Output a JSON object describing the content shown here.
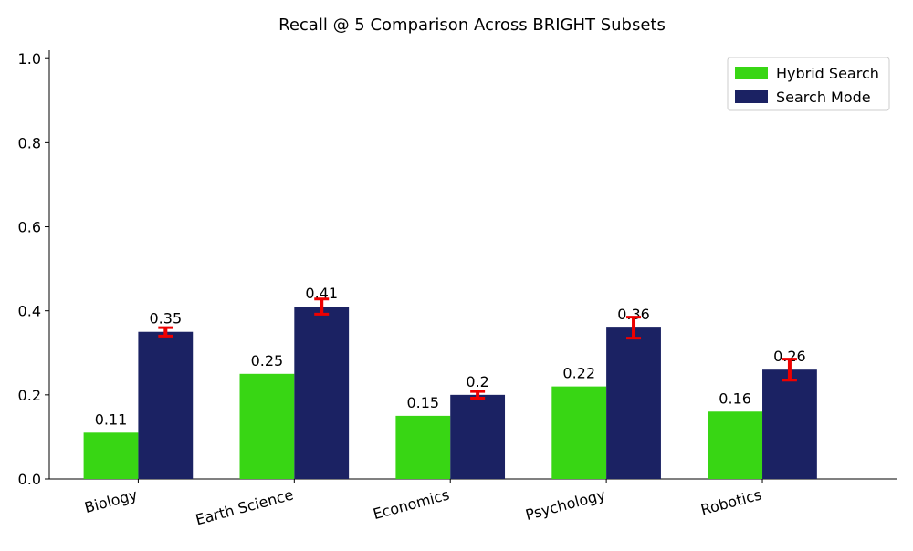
{
  "chart_data": {
    "type": "bar",
    "title": "Recall @ 5 Comparison Across BRIGHT Subsets",
    "xlabel": "",
    "ylabel": "",
    "categories": [
      "Biology",
      "Earth Science",
      "Economics",
      "Psychology",
      "Robotics"
    ],
    "series": [
      {
        "name": "Hybrid Search",
        "color": "#38d614",
        "values": [
          0.11,
          0.25,
          0.15,
          0.22,
          0.16
        ],
        "labels": [
          "0.11",
          "0.25",
          "0.15",
          "0.22",
          "0.16"
        ]
      },
      {
        "name": "Search Mode",
        "color": "#1b2263",
        "values": [
          0.35,
          0.41,
          0.2,
          0.36,
          0.26
        ],
        "labels": [
          "0.35",
          "0.41",
          "0.2",
          "0.36",
          "0.26"
        ],
        "errors": [
          0.01,
          0.018,
          0.008,
          0.025,
          0.025
        ],
        "error_color": "#ee0000"
      }
    ],
    "ylim": [
      0,
      1.02
    ],
    "yticks": [
      "0.0",
      "0.2",
      "0.4",
      "0.6",
      "0.8",
      "1.0"
    ],
    "grid": false,
    "legend_position": "top-right"
  }
}
